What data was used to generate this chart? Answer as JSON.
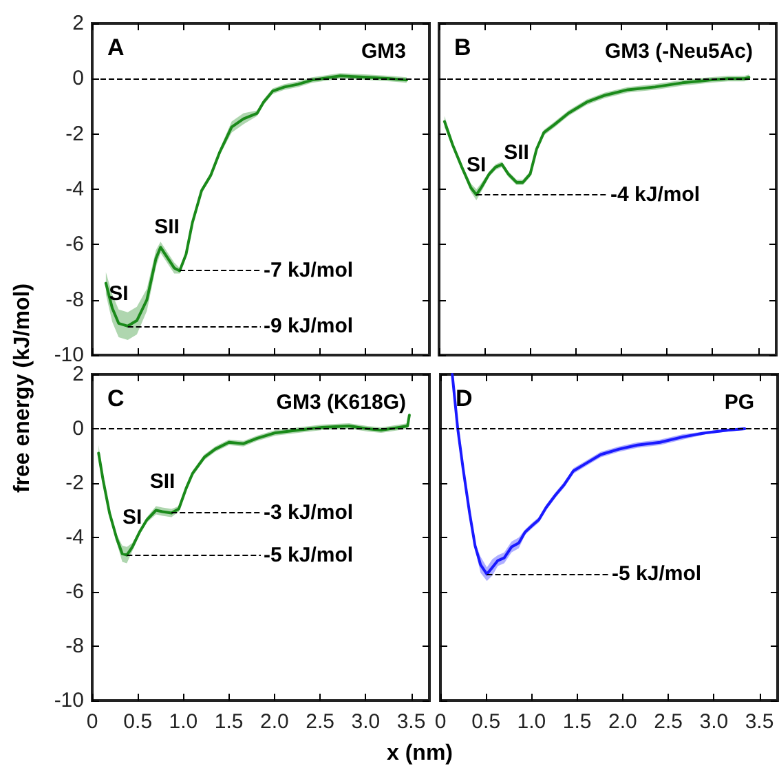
{
  "chart_data": [
    {
      "type": "line",
      "title": "A",
      "subtitle": "GM3",
      "ylabel": "free energy (kJ/mol)",
      "xlim": [
        0,
        3.7
      ],
      "ylim": [
        -10,
        2
      ],
      "xticks": [
        0,
        0.5,
        1,
        1.5,
        2,
        2.5,
        3,
        3.5
      ],
      "yticks": [
        -10,
        -8,
        -6,
        -4,
        -2,
        0,
        2
      ],
      "tick_labels": "y",
      "x": [
        0.15,
        0.22,
        0.29,
        0.39,
        0.49,
        0.6,
        0.7,
        0.75,
        0.82,
        0.9,
        0.96,
        1.03,
        1.1,
        1.2,
        1.3,
        1.4,
        1.53,
        1.66,
        1.81,
        1.88,
        1.98,
        2.11,
        2.26,
        2.41,
        2.52,
        2.72,
        3.02,
        3.27,
        3.45
      ],
      "series": [
        {
          "color": "#1a8a1a",
          "values": [
            -7.4,
            -8.3,
            -8.85,
            -8.95,
            -8.75,
            -8.0,
            -6.5,
            -6.1,
            -6.45,
            -6.85,
            -6.95,
            -6.35,
            -5.2,
            -4.05,
            -3.5,
            -2.65,
            -1.75,
            -1.45,
            -1.25,
            -0.85,
            -0.45,
            -0.3,
            -0.2,
            -0.05,
            0,
            0.1,
            0.05,
            0,
            -0.05
          ],
          "lower": [
            -7.8,
            -8.8,
            -9.35,
            -9.45,
            -9.25,
            -8.4,
            -6.8,
            -6.3,
            -6.65,
            -7.05,
            -7.05,
            -6.45,
            -5.3,
            -4.15,
            -3.6,
            -2.75,
            -1.95,
            -1.65,
            -1.35,
            -0.95,
            -0.55,
            -0.4,
            -0.3,
            -0.15,
            -0.1,
            0,
            -0.05,
            -0.1,
            -0.15
          ],
          "upper": [
            -7.0,
            -7.8,
            -8.35,
            -8.45,
            -8.25,
            -7.6,
            -6.2,
            -5.9,
            -6.25,
            -6.65,
            -6.85,
            -6.25,
            -5.1,
            -3.95,
            -3.4,
            -2.55,
            -1.55,
            -1.25,
            -1.15,
            -0.75,
            -0.35,
            -0.2,
            -0.1,
            0.05,
            0.1,
            0.2,
            0.15,
            0.1,
            0.05
          ]
        }
      ],
      "ref_lines": [
        {
          "axis": "y",
          "value": 0,
          "color": "#000000",
          "line_style": "dashed"
        },
        {
          "axis": "y",
          "value": -6.95,
          "label": "-7 kJ/mol",
          "color": "#000000",
          "line_style": "dashed"
        },
        {
          "axis": "y",
          "value": -8.95,
          "label": "-9 kJ/mol",
          "color": "#000000",
          "line_style": "dashed"
        }
      ],
      "annotations": [
        {
          "text": "SI",
          "x": 0.29,
          "y": -8.85
        },
        {
          "text": "SII",
          "x": 0.82,
          "y": -6.45
        }
      ]
    },
    {
      "type": "line",
      "title": "B",
      "subtitle": "GM3 (-Neu5Ac)",
      "xlim": [
        0,
        3.7
      ],
      "ylim": [
        -10,
        2
      ],
      "xticks": [
        0,
        0.5,
        1,
        1.5,
        2,
        2.5,
        3,
        3.5
      ],
      "yticks": [
        -10,
        -8,
        -6,
        -4,
        -2,
        0,
        2
      ],
      "tick_labels": false,
      "x": [
        0.06,
        0.15,
        0.25,
        0.35,
        0.41,
        0.47,
        0.55,
        0.62,
        0.69,
        0.76,
        0.85,
        0.92,
        1.0,
        1.07,
        1.15,
        1.27,
        1.42,
        1.62,
        1.82,
        2.07,
        2.37,
        2.67,
        2.97,
        3.17,
        3.35,
        3.4
      ],
      "series": [
        {
          "color": "#1a8a1a",
          "values": [
            -1.55,
            -2.4,
            -3.2,
            -3.95,
            -4.2,
            -3.9,
            -3.45,
            -3.2,
            -3.1,
            -3.45,
            -3.75,
            -3.75,
            -3.45,
            -2.55,
            -1.95,
            -1.65,
            -1.25,
            -0.85,
            -0.6,
            -0.4,
            -0.3,
            -0.15,
            -0.05,
            0,
            0,
            0.05
          ],
          "lower": [
            -1.75,
            -2.5,
            -3.3,
            -4.1,
            -4.4,
            -4.05,
            -3.55,
            -3.3,
            -3.2,
            -3.55,
            -3.85,
            -3.85,
            -3.55,
            -2.65,
            -2.05,
            -1.75,
            -1.35,
            -0.95,
            -0.7,
            -0.5,
            -0.4,
            -0.25,
            -0.15,
            -0.1,
            -0.1,
            -0.05
          ],
          "upper": [
            -1.35,
            -2.3,
            -3.1,
            -3.8,
            -4.0,
            -3.75,
            -3.35,
            -3.1,
            -3.0,
            -3.35,
            -3.65,
            -3.65,
            -3.35,
            -2.45,
            -1.85,
            -1.55,
            -1.15,
            -0.75,
            -0.5,
            -0.3,
            -0.2,
            -0.05,
            0.05,
            0.1,
            0.1,
            0.15
          ]
        }
      ],
      "ref_lines": [
        {
          "axis": "y",
          "value": 0,
          "color": "#000000",
          "line_style": "dashed"
        },
        {
          "axis": "y",
          "value": -4.2,
          "label": "-4 kJ/mol",
          "color": "#000000",
          "line_style": "dashed"
        }
      ],
      "annotations": [
        {
          "text": "SI",
          "x": 0.41,
          "y": -4.2
        },
        {
          "text": "SII",
          "x": 0.85,
          "y": -3.75
        }
      ]
    },
    {
      "type": "line",
      "title": "C",
      "subtitle": "GM3 (K618G)",
      "xlabel": "x (nm)",
      "xlim": [
        0,
        3.7
      ],
      "ylim": [
        -10,
        2
      ],
      "xticks": [
        0,
        0.5,
        {
          "value": 1,
          "label": "1.0"
        },
        1.5,
        {
          "value": 2,
          "label": "2.0"
        },
        2.5,
        {
          "value": 3,
          "label": "3.0"
        },
        3.5
      ],
      "yticks": [
        -10,
        -8,
        -6,
        -4,
        -2,
        0,
        2
      ],
      "x": [
        0.07,
        0.12,
        0.19,
        0.27,
        0.33,
        0.38,
        0.44,
        0.52,
        0.6,
        0.7,
        0.77,
        0.87,
        0.95,
        1.03,
        1.1,
        1.23,
        1.35,
        1.5,
        1.66,
        1.81,
        2.01,
        2.26,
        2.52,
        2.82,
        3.02,
        3.17,
        3.37,
        3.46,
        3.48
      ],
      "series": [
        {
          "color": "#1a8a1a",
          "values": [
            -0.9,
            -1.9,
            -3.1,
            -4.05,
            -4.6,
            -4.65,
            -4.35,
            -3.8,
            -3.35,
            -3.0,
            -3.05,
            -3.1,
            -2.95,
            -2.2,
            -1.65,
            -1.05,
            -0.75,
            -0.5,
            -0.55,
            -0.35,
            -0.15,
            -0.05,
            0.05,
            0.1,
            0,
            -0.05,
            0.05,
            0.1,
            0.5
          ],
          "lower": [
            -1.2,
            -2.0,
            -3.2,
            -4.2,
            -4.9,
            -4.95,
            -4.5,
            -3.9,
            -3.45,
            -3.15,
            -3.2,
            -3.25,
            -3.05,
            -2.3,
            -1.75,
            -1.15,
            -0.85,
            -0.6,
            -0.65,
            -0.45,
            -0.25,
            -0.15,
            -0.05,
            0,
            -0.1,
            -0.15,
            -0.05,
            0,
            0.4
          ],
          "upper": [
            -0.6,
            -1.8,
            -3.0,
            -3.9,
            -4.3,
            -4.35,
            -4.2,
            -3.7,
            -3.25,
            -2.85,
            -2.9,
            -2.95,
            -2.85,
            -2.1,
            -1.55,
            -0.95,
            -0.65,
            -0.4,
            -0.45,
            -0.25,
            -0.05,
            0.05,
            0.15,
            0.2,
            0.1,
            0.05,
            0.15,
            0.2,
            0.6
          ]
        }
      ],
      "ref_lines": [
        {
          "axis": "y",
          "value": 0,
          "color": "#000000",
          "line_style": "dashed"
        },
        {
          "axis": "y",
          "value": -3.1,
          "label": "-3 kJ/mol",
          "color": "#000000",
          "line_style": "dashed"
        },
        {
          "axis": "y",
          "value": -4.65,
          "label": "-5 kJ/mol",
          "color": "#000000",
          "line_style": "dashed"
        }
      ],
      "annotations": [
        {
          "text": "SI",
          "x": 0.44,
          "y": -4.35
        },
        {
          "text": "SII",
          "x": 0.77,
          "y": -3.05
        }
      ]
    },
    {
      "type": "line",
      "title": "D",
      "subtitle": "PG",
      "xlim": [
        0,
        3.7
      ],
      "ylim": [
        -10,
        2
      ],
      "xticks": [
        0,
        0.5,
        {
          "value": 1,
          "label": "1.0"
        },
        1.5,
        {
          "value": 2,
          "label": "2.0"
        },
        2.5,
        {
          "value": 3,
          "label": "3.0"
        },
        3.5
      ],
      "yticks": [
        -10,
        -8,
        -6,
        -4,
        -2,
        0,
        2
      ],
      "tick_labels": "x",
      "x": [
        0.13,
        0.19,
        0.25,
        0.32,
        0.38,
        0.44,
        0.51,
        0.57,
        0.63,
        0.7,
        0.78,
        0.86,
        0.93,
        1.01,
        1.08,
        1.16,
        1.26,
        1.36,
        1.46,
        1.61,
        1.76,
        1.96,
        2.16,
        2.41,
        2.66,
        2.91,
        3.16,
        3.34
      ],
      "series": [
        {
          "color": "#1a1aff",
          "values": [
            2,
            0,
            -1.5,
            -3.1,
            -4.3,
            -5.0,
            -5.35,
            -5.1,
            -4.85,
            -4.75,
            -4.35,
            -4.2,
            -3.8,
            -3.55,
            -3.35,
            -2.9,
            -2.45,
            -2.05,
            -1.55,
            -1.25,
            -0.95,
            -0.75,
            -0.6,
            -0.5,
            -0.3,
            -0.15,
            -0.05,
            0
          ],
          "lower": [
            2,
            0,
            -1.5,
            -3.1,
            -4.4,
            -5.3,
            -5.6,
            -5.4,
            -5.05,
            -4.95,
            -4.55,
            -4.4,
            -3.9,
            -3.65,
            -3.45,
            -3.0,
            -2.55,
            -2.15,
            -1.65,
            -1.35,
            -1.05,
            -0.85,
            -0.7,
            -0.6,
            -0.4,
            -0.2,
            -0.1,
            -0.05
          ],
          "upper": [
            2,
            0,
            -1.5,
            -3.1,
            -4.2,
            -4.7,
            -5.1,
            -4.8,
            -4.65,
            -4.55,
            -4.15,
            -4.0,
            -3.7,
            -3.45,
            -3.25,
            -2.8,
            -2.35,
            -1.95,
            -1.45,
            -1.15,
            -0.85,
            -0.65,
            -0.5,
            -0.4,
            -0.2,
            -0.1,
            0,
            0.05
          ]
        }
      ],
      "ref_lines": [
        {
          "axis": "y",
          "value": 0,
          "color": "#000000",
          "line_style": "dashed"
        },
        {
          "axis": "y",
          "value": -5.35,
          "label": "-5 kJ/mol",
          "color": "#000000",
          "line_style": "dashed"
        }
      ]
    }
  ]
}
